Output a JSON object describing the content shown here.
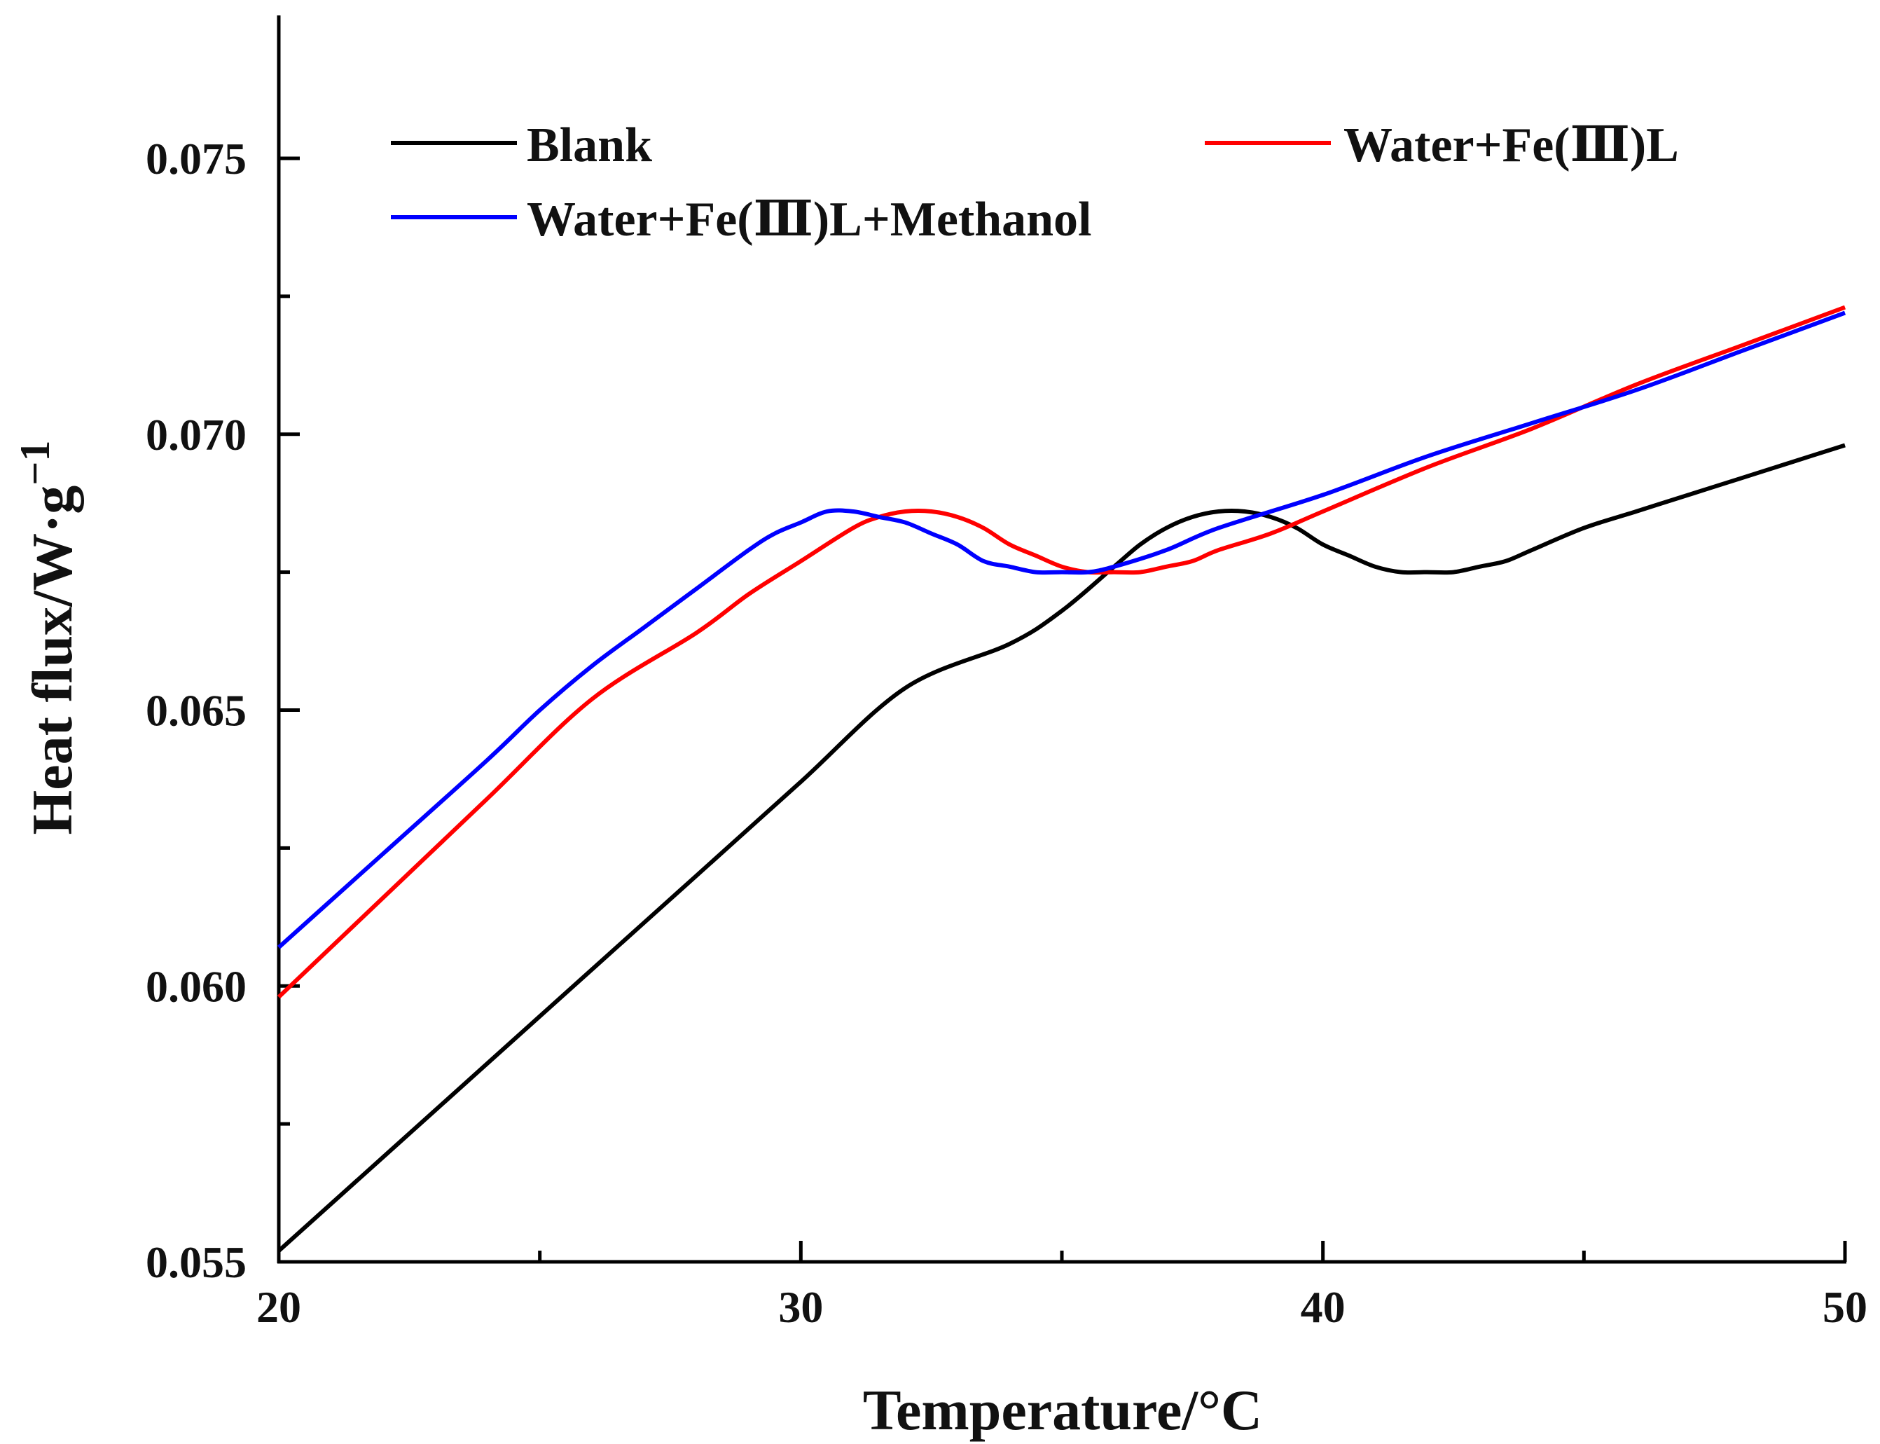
{
  "chart_data": {
    "type": "line",
    "xlabel": "Temperature/°C",
    "ylabel": "Heat flux/W·g",
    "ylabel_superscript": "−1",
    "xlim": [
      20,
      50
    ],
    "ylim": [
      0.055,
      0.0775
    ],
    "x_ticks": [
      {
        "value": 20,
        "label": "20"
      },
      {
        "value": 30,
        "label": "30"
      },
      {
        "value": 40,
        "label": "40"
      },
      {
        "value": 50,
        "label": "50"
      }
    ],
    "x_minor_ticks": [
      25,
      35,
      45
    ],
    "y_ticks": [
      {
        "value": 0.055,
        "label": "0.055"
      },
      {
        "value": 0.06,
        "label": "0.060"
      },
      {
        "value": 0.065,
        "label": "0.065"
      },
      {
        "value": 0.07,
        "label": "0.070"
      },
      {
        "value": 0.075,
        "label": "0.075"
      }
    ],
    "y_minor_ticks": [
      0.0575,
      0.0625,
      0.0675,
      0.0725
    ],
    "legend_placement": "top",
    "series": [
      {
        "name": "Blank",
        "color": "#000000",
        "x": [
          20,
          22,
          24,
          26,
          28,
          30,
          32,
          34,
          35,
          36,
          36.5,
          37,
          37.5,
          38,
          38.5,
          39,
          39.5,
          40,
          40.5,
          41,
          41.5,
          42,
          42.5,
          43,
          43.5,
          44,
          45,
          46,
          47,
          48,
          49,
          50
        ],
        "y": [
          0.0552,
          0.0569,
          0.0586,
          0.0603,
          0.062,
          0.0637,
          0.0654,
          0.0662,
          0.0668,
          0.0676,
          0.068,
          0.0683,
          0.0685,
          0.0686,
          0.0686,
          0.0685,
          0.0683,
          0.068,
          0.0678,
          0.0676,
          0.0675,
          0.0675,
          0.0675,
          0.0676,
          0.0677,
          0.0679,
          0.0683,
          0.0686,
          0.0689,
          0.0692,
          0.0695,
          0.0698
        ]
      },
      {
        "name": "Water+Fe(Ⅲ)L",
        "color": "#ff0000",
        "x": [
          20,
          22,
          24,
          26,
          28,
          29,
          30,
          31,
          31.5,
          32,
          32.5,
          33,
          33.5,
          34,
          34.5,
          35,
          35.5,
          36,
          36.5,
          37,
          37.5,
          38,
          39,
          40,
          42,
          44,
          46,
          48,
          50
        ],
        "y": [
          0.0598,
          0.0616,
          0.0634,
          0.0652,
          0.0664,
          0.0671,
          0.0677,
          0.0683,
          0.0685,
          0.0686,
          0.0686,
          0.0685,
          0.0683,
          0.068,
          0.0678,
          0.0676,
          0.0675,
          0.0675,
          0.0675,
          0.0676,
          0.0677,
          0.0679,
          0.0682,
          0.0686,
          0.0694,
          0.0701,
          0.0709,
          0.0716,
          0.0723
        ]
      },
      {
        "name": "Water+Fe(Ⅲ)L+Methanol",
        "color": "#0000ff",
        "x": [
          20,
          22,
          24,
          25,
          26,
          27,
          28,
          29,
          29.5,
          30,
          30.5,
          31,
          31.5,
          32,
          32.5,
          33,
          33.5,
          34,
          34.5,
          35,
          35.5,
          36,
          37,
          38,
          40,
          42,
          44,
          46,
          48,
          50
        ],
        "y": [
          0.0607,
          0.0624,
          0.0641,
          0.065,
          0.0658,
          0.0665,
          0.0672,
          0.0679,
          0.0682,
          0.0684,
          0.0686,
          0.0686,
          0.0685,
          0.0684,
          0.0682,
          0.068,
          0.0677,
          0.0676,
          0.0675,
          0.0675,
          0.0675,
          0.0676,
          0.0679,
          0.0683,
          0.0689,
          0.0696,
          0.0702,
          0.0708,
          0.0715,
          0.0722
        ]
      }
    ]
  }
}
